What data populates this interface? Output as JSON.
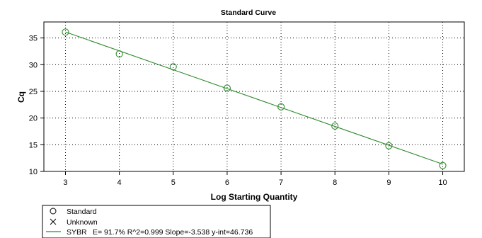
{
  "chart_data": {
    "type": "scatter",
    "title": "Standard Curve",
    "xlabel": "Log Starting Quantity",
    "ylabel": "Cq",
    "xlim": [
      2.6,
      10.4
    ],
    "ylim": [
      10,
      38
    ],
    "x_ticks": [
      3,
      4,
      5,
      6,
      7,
      8,
      9,
      10
    ],
    "y_ticks": [
      10,
      15,
      20,
      25,
      30,
      35
    ],
    "grid": "dotted",
    "legend_position": "bottom-left",
    "line_color": "#2e8b2e",
    "marker_color": "#2e8b2e",
    "series": [
      {
        "name": "Standard",
        "marker": "circle",
        "x": [
          3,
          4,
          5,
          6,
          7,
          8,
          9,
          10
        ],
        "y": [
          36.1,
          32.0,
          29.6,
          25.6,
          22.1,
          18.5,
          14.8,
          11.1
        ]
      }
    ],
    "fit_line": {
      "name": "SYBR",
      "slope": -3.538,
      "intercept": 46.736,
      "stats": "E= 91.7% R^2=0.999 Slope=-3.538 y-int=46.736"
    },
    "legend": [
      {
        "label": "Standard",
        "symbol": "circle"
      },
      {
        "label": "Unknown",
        "symbol": "cross"
      },
      {
        "label": "SYBR",
        "symbol": "line",
        "stats": "E= 91.7% R^2=0.999 Slope=-3.538 y-int=46.736"
      }
    ]
  }
}
